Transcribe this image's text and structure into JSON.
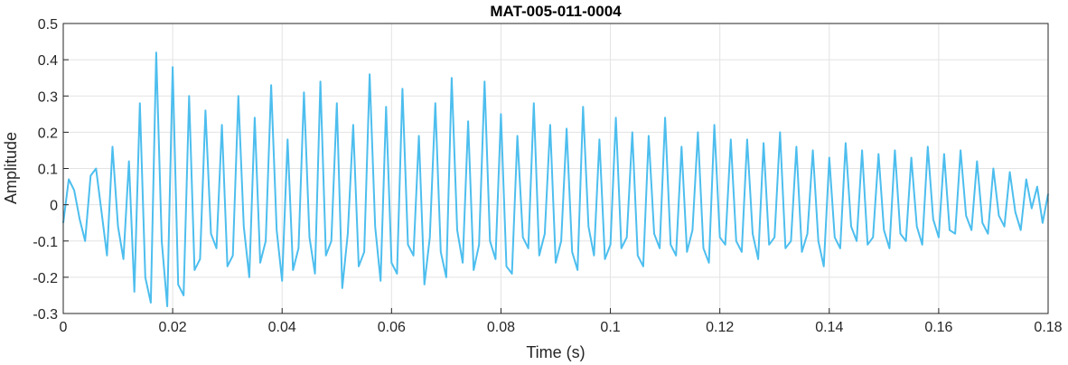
{
  "chart_data": {
    "type": "line",
    "title": "MAT-005-011-0004",
    "xlabel": "Time (s)",
    "ylabel": "Amplitude",
    "xlim": [
      0,
      0.18
    ],
    "ylim": [
      -0.3,
      0.5
    ],
    "xticks": [
      0,
      0.02,
      0.04,
      0.06,
      0.08,
      0.1,
      0.12,
      0.14,
      0.16,
      0.18
    ],
    "xtick_labels": [
      "0",
      "0.02",
      "0.04",
      "0.06",
      "0.08",
      "0.1",
      "0.12",
      "0.14",
      "0.16",
      "0.18"
    ],
    "yticks": [
      -0.3,
      -0.2,
      -0.1,
      0,
      0.1,
      0.2,
      0.3,
      0.4,
      0.5
    ],
    "ytick_labels": [
      "-0.3",
      "-0.2",
      "-0.1",
      "0",
      "0.1",
      "0.2",
      "0.3",
      "0.4",
      "0.5"
    ],
    "grid": true,
    "line_color": "#4DBEEE",
    "series": [
      {
        "x": [
          0,
          0.001,
          0.002,
          0.003,
          0.004,
          0.005,
          0.006,
          0.007,
          0.008,
          0.009,
          0.01,
          0.011,
          0.012,
          0.013,
          0.014,
          0.015,
          0.016,
          0.017,
          0.018,
          0.019,
          0.02,
          0.021,
          0.022,
          0.023,
          0.024,
          0.025,
          0.026,
          0.027,
          0.028,
          0.029,
          0.03,
          0.031,
          0.032,
          0.033,
          0.034,
          0.035,
          0.036,
          0.037,
          0.038,
          0.039,
          0.04,
          0.041,
          0.042,
          0.043,
          0.044,
          0.045,
          0.046,
          0.047,
          0.048,
          0.049,
          0.05,
          0.051,
          0.052,
          0.053,
          0.054,
          0.055,
          0.056,
          0.057,
          0.058,
          0.059,
          0.06,
          0.061,
          0.062,
          0.063,
          0.064,
          0.065,
          0.066,
          0.067,
          0.068,
          0.069,
          0.07,
          0.071,
          0.072,
          0.073,
          0.074,
          0.075,
          0.076,
          0.077,
          0.078,
          0.079,
          0.08,
          0.081,
          0.082,
          0.083,
          0.084,
          0.085,
          0.086,
          0.087,
          0.088,
          0.089,
          0.09,
          0.091,
          0.092,
          0.093,
          0.094,
          0.095,
          0.096,
          0.097,
          0.098,
          0.099,
          0.1,
          0.101,
          0.102,
          0.103,
          0.104,
          0.105,
          0.106,
          0.107,
          0.108,
          0.109,
          0.11,
          0.111,
          0.112,
          0.113,
          0.114,
          0.115,
          0.116,
          0.117,
          0.118,
          0.119,
          0.12,
          0.121,
          0.122,
          0.123,
          0.124,
          0.125,
          0.126,
          0.127,
          0.128,
          0.129,
          0.13,
          0.131,
          0.132,
          0.133,
          0.134,
          0.135,
          0.136,
          0.137,
          0.138,
          0.139,
          0.14,
          0.141,
          0.142,
          0.143,
          0.144,
          0.145,
          0.146,
          0.147,
          0.148,
          0.149,
          0.15,
          0.151,
          0.152,
          0.153,
          0.154,
          0.155,
          0.156,
          0.157,
          0.158,
          0.159,
          0.16,
          0.161,
          0.162,
          0.163,
          0.164,
          0.165,
          0.166,
          0.167,
          0.168,
          0.169,
          0.17,
          0.171,
          0.172,
          0.173,
          0.174,
          0.175,
          0.176,
          0.177,
          0.178,
          0.179,
          0.18
        ],
        "y": [
          -0.05,
          0.07,
          0.04,
          -0.04,
          -0.1,
          0.08,
          0.1,
          -0.02,
          -0.14,
          0.16,
          -0.06,
          -0.15,
          0.12,
          -0.24,
          0.28,
          -0.2,
          -0.27,
          0.42,
          -0.1,
          -0.28,
          0.38,
          -0.22,
          -0.25,
          0.3,
          -0.18,
          -0.15,
          0.26,
          -0.08,
          -0.12,
          0.22,
          -0.17,
          -0.14,
          0.3,
          -0.06,
          -0.2,
          0.24,
          -0.16,
          -0.1,
          0.33,
          -0.07,
          -0.21,
          0.18,
          -0.18,
          -0.12,
          0.31,
          -0.09,
          -0.19,
          0.34,
          -0.14,
          -0.1,
          0.28,
          -0.23,
          -0.08,
          0.22,
          -0.17,
          -0.13,
          0.36,
          -0.06,
          -0.21,
          0.27,
          -0.16,
          -0.19,
          0.32,
          -0.11,
          -0.14,
          0.19,
          -0.22,
          -0.09,
          0.28,
          -0.13,
          -0.2,
          0.35,
          -0.07,
          -0.16,
          0.23,
          -0.18,
          -0.11,
          0.34,
          -0.1,
          -0.15,
          0.25,
          -0.17,
          -0.19,
          0.19,
          -0.09,
          -0.12,
          0.28,
          -0.14,
          -0.08,
          0.22,
          -0.16,
          -0.1,
          0.21,
          -0.13,
          -0.18,
          0.27,
          -0.06,
          -0.14,
          0.18,
          -0.15,
          -0.11,
          0.24,
          -0.12,
          -0.09,
          0.2,
          -0.14,
          -0.17,
          0.19,
          -0.08,
          -0.12,
          0.24,
          -0.11,
          -0.14,
          0.16,
          -0.13,
          -0.07,
          0.2,
          -0.12,
          -0.16,
          0.22,
          -0.09,
          -0.11,
          0.18,
          -0.1,
          -0.13,
          0.18,
          -0.08,
          -0.15,
          0.17,
          -0.11,
          -0.09,
          0.2,
          -0.12,
          -0.1,
          0.16,
          -0.13,
          -0.08,
          0.15,
          -0.1,
          -0.17,
          0.13,
          -0.09,
          -0.12,
          0.17,
          -0.06,
          -0.1,
          0.15,
          -0.11,
          -0.09,
          0.14,
          -0.07,
          -0.12,
          0.15,
          -0.08,
          -0.1,
          0.13,
          -0.06,
          -0.11,
          0.16,
          -0.04,
          -0.09,
          0.14,
          -0.07,
          -0.08,
          0.15,
          -0.03,
          -0.07,
          0.12,
          -0.05,
          -0.08,
          0.1,
          -0.03,
          -0.06,
          0.09,
          -0.02,
          -0.07,
          0.07,
          -0.01,
          0.05,
          -0.05,
          0.03
        ]
      }
    ]
  }
}
